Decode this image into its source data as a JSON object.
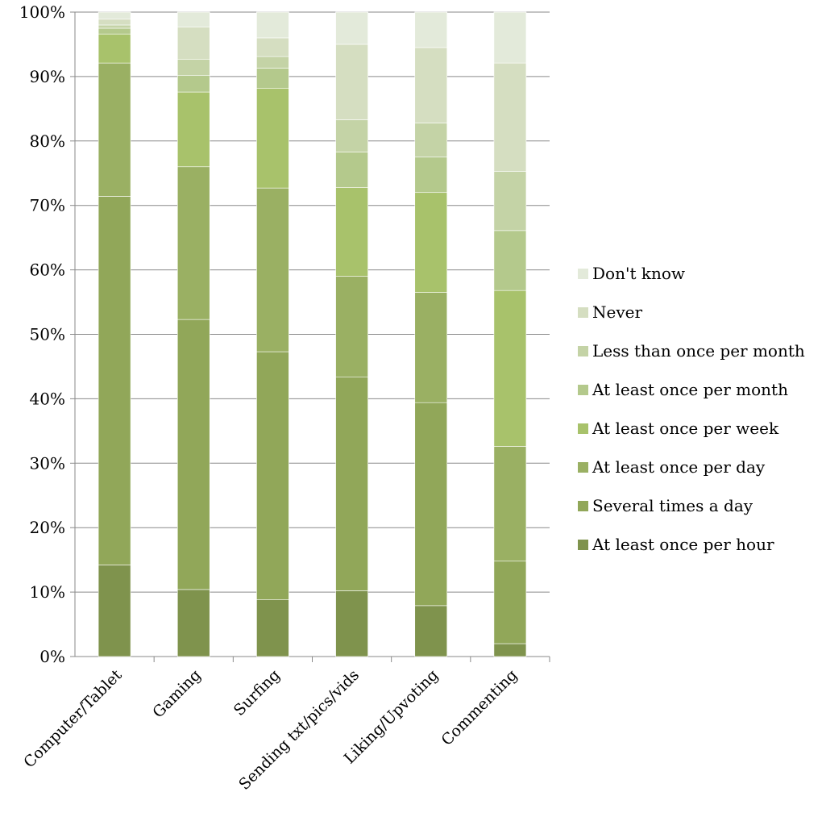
{
  "chart_data": {
    "type": "bar",
    "stacked": true,
    "percent_axis": true,
    "ylim": [
      0,
      100
    ],
    "yticks": [
      "0%",
      "10%",
      "20%",
      "30%",
      "40%",
      "50%",
      "60%",
      "70%",
      "80%",
      "90%",
      "100%"
    ],
    "ytick_values": [
      0,
      10,
      20,
      30,
      40,
      50,
      60,
      70,
      80,
      90,
      100
    ],
    "grid": true,
    "legend_position": "right",
    "categories": [
      "Computer/Tablet",
      "Gaming",
      "Surfing",
      "Sending txt/pics/vids",
      "Liking/Upvoting",
      "Commenting"
    ],
    "series": [
      {
        "name": "At least once per hour",
        "color": "#7f934d",
        "values": [
          14.2,
          10.4,
          8.8,
          10.2,
          7.9,
          2.0
        ]
      },
      {
        "name": "Several times a day",
        "color": "#91a759",
        "values": [
          57.2,
          41.9,
          38.5,
          33.2,
          31.5,
          12.8
        ]
      },
      {
        "name": "At least once per day",
        "color": "#9ab063",
        "values": [
          20.7,
          23.7,
          25.4,
          15.6,
          17.1,
          17.8
        ]
      },
      {
        "name": "At least once per week",
        "color": "#a8c26b",
        "values": [
          4.5,
          11.6,
          15.5,
          13.8,
          15.5,
          24.2
        ]
      },
      {
        "name": "At least once per month",
        "color": "#b4c98c",
        "values": [
          0.9,
          2.6,
          3.1,
          5.5,
          5.5,
          9.3
        ]
      },
      {
        "name": "Less than once per month",
        "color": "#c4d3a6",
        "values": [
          0.5,
          2.5,
          1.8,
          5.0,
          5.3,
          9.2
        ]
      },
      {
        "name": "Never",
        "color": "#d5dec1",
        "values": [
          0.9,
          5.0,
          2.9,
          11.7,
          11.7,
          16.8
        ]
      },
      {
        "name": "Don't know",
        "color": "#e3eada",
        "values": [
          1.1,
          2.3,
          4.0,
          5.0,
          5.5,
          7.9
        ]
      }
    ]
  }
}
